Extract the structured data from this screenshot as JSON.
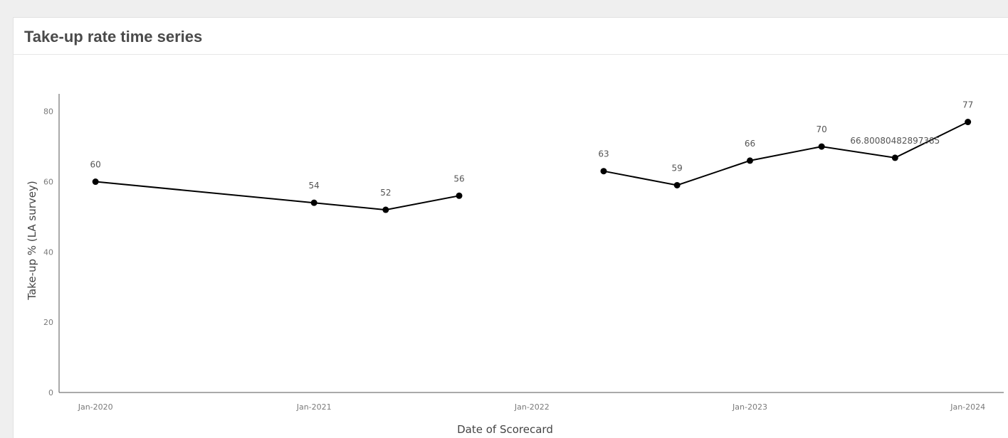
{
  "panel": {
    "title": "Take-up rate time series"
  },
  "chart_data": {
    "type": "line",
    "title": "",
    "xlabel": "Date of Scorecard",
    "ylabel": "Take-up % (LA survey)",
    "x_ticks": [
      "Jan-2020",
      "Jan-2021",
      "Jan-2022",
      "Jan-2023",
      "Jan-2024"
    ],
    "y_ticks": [
      0,
      20,
      40,
      60,
      80
    ],
    "ylim": [
      0,
      85
    ],
    "xlim": [
      "2019-11-01",
      "2024-03-01"
    ],
    "grid": false,
    "line_color": "#000000",
    "segments": [
      [
        {
          "x": "2020-01-01",
          "y": 60,
          "label": "60"
        },
        {
          "x": "2021-01-01",
          "y": 54,
          "label": "54"
        },
        {
          "x": "2021-05-01",
          "y": 52,
          "label": "52"
        },
        {
          "x": "2021-09-01",
          "y": 56,
          "label": "56"
        }
      ],
      [
        {
          "x": "2022-05-01",
          "y": 63,
          "label": "63"
        },
        {
          "x": "2022-09-01",
          "y": 59,
          "label": "59"
        },
        {
          "x": "2023-01-01",
          "y": 66,
          "label": "66"
        },
        {
          "x": "2023-05-01",
          "y": 70,
          "label": "70"
        },
        {
          "x": "2023-09-01",
          "y": 66.80080482897385,
          "label": "66.80080482897385"
        },
        {
          "x": "2024-01-01",
          "y": 77,
          "label": "77"
        }
      ]
    ]
  }
}
